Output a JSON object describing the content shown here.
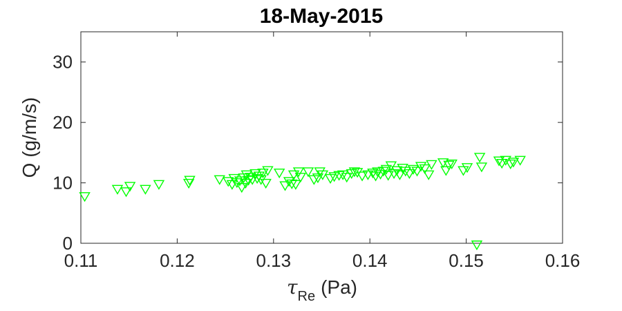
{
  "chart_data": {
    "type": "scatter",
    "title": "18-May-2015",
    "xlabel": {
      "symbol": "τ",
      "subscript": "Re",
      "unit": "(Pa)"
    },
    "ylabel": "Q (g/m/s)",
    "xlim": [
      0.11,
      0.16
    ],
    "ylim": [
      0,
      35
    ],
    "xticks": [
      0.11,
      0.12,
      0.13,
      0.14,
      0.15,
      0.16
    ],
    "xtick_labels": [
      "0.11",
      "0.12",
      "0.13",
      "0.14",
      "0.15",
      "0.16"
    ],
    "yticks": [
      0,
      10,
      20,
      30
    ],
    "ytick_labels": [
      "0",
      "10",
      "20",
      "30"
    ],
    "grid": false,
    "marker": "triangle-down",
    "marker_color": "#00ff00",
    "series": [
      {
        "x": [
          0.1104,
          0.1138,
          0.1147,
          0.1151,
          0.1167,
          0.1181,
          0.1212,
          0.1213,
          0.1244,
          0.1253,
          0.1257,
          0.1259,
          0.1262,
          0.1265,
          0.1267,
          0.1269,
          0.1271,
          0.1272,
          0.1274,
          0.1276,
          0.1278,
          0.1281,
          0.1283,
          0.1285,
          0.1287,
          0.1289,
          0.1292,
          0.1294,
          0.1306,
          0.1312,
          0.1316,
          0.1319,
          0.1321,
          0.1323,
          0.1326,
          0.1328,
          0.1336,
          0.1342,
          0.1346,
          0.1348,
          0.1351,
          0.1359,
          0.1363,
          0.1368,
          0.1372,
          0.1376,
          0.1381,
          0.1384,
          0.1387,
          0.1392,
          0.1398,
          0.1403,
          0.1406,
          0.1408,
          0.1411,
          0.1414,
          0.1417,
          0.1419,
          0.1422,
          0.1425,
          0.1428,
          0.1431,
          0.1434,
          0.1437,
          0.1441,
          0.1445,
          0.1449,
          0.1453,
          0.1457,
          0.1461,
          0.1464,
          0.1476,
          0.1479,
          0.1482,
          0.1485,
          0.1497,
          0.1501,
          0.1511,
          0.1514,
          0.1516,
          0.1534,
          0.1537,
          0.1541,
          0.1546,
          0.1549,
          0.1556
        ],
        "y": [
          7.8,
          9.0,
          8.6,
          9.5,
          9.0,
          9.8,
          10.0,
          10.5,
          10.6,
          10.3,
          9.8,
          10.8,
          10.1,
          10.4,
          9.3,
          10.9,
          10.0,
          11.4,
          10.5,
          11.0,
          10.6,
          11.6,
          10.8,
          11.2,
          10.6,
          11.7,
          10.0,
          12.1,
          11.7,
          9.6,
          10.3,
          9.9,
          11.4,
          9.8,
          11.9,
          11.0,
          11.9,
          10.6,
          10.9,
          11.9,
          11.4,
          10.8,
          11.1,
          11.3,
          11.4,
          11.0,
          11.6,
          11.9,
          11.8,
          11.2,
          11.4,
          11.7,
          11.2,
          11.9,
          11.5,
          12.0,
          12.3,
          11.3,
          12.9,
          11.6,
          12.1,
          11.4,
          12.5,
          12.0,
          11.6,
          12.3,
          12.0,
          12.8,
          12.4,
          11.4,
          13.1,
          13.4,
          12.1,
          13.0,
          13.2,
          12.1,
          12.6,
          -0.2,
          14.3,
          12.7,
          13.7,
          13.3,
          13.8,
          13.2,
          13.5,
          13.8
        ]
      }
    ]
  }
}
